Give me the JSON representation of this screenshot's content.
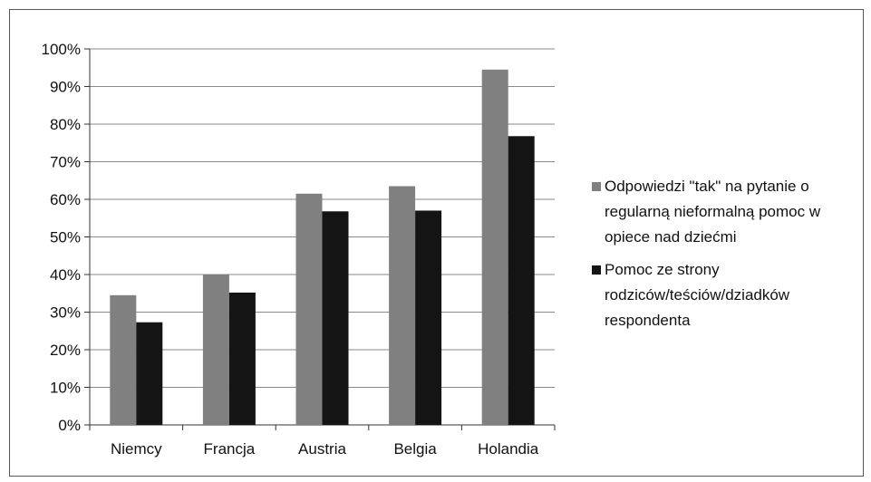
{
  "chart_data": {
    "type": "bar",
    "categories": [
      "Niemcy",
      "Francja",
      "Austria",
      "Belgia",
      "Holandia"
    ],
    "series": [
      {
        "name": "Odpowiedzi \"tak\" na pytanie o regularną nieformalną pomoc w opiece nad dziećmi",
        "values": [
          34.5,
          40,
          61.5,
          63.5,
          94.5
        ],
        "color": "#808080"
      },
      {
        "name": "Pomoc ze strony rodziców/teściów/dziadków respondenta",
        "values": [
          27.3,
          35.2,
          56.8,
          57.0,
          76.8
        ],
        "color": "#141414"
      }
    ],
    "ylim": [
      0,
      100
    ],
    "yticks": [
      "0%",
      "10%",
      "20%",
      "30%",
      "40%",
      "50%",
      "60%",
      "70%",
      "80%",
      "90%",
      "100%"
    ],
    "grid": true,
    "legend_position": "right",
    "title": "",
    "xlabel": "",
    "ylabel": ""
  },
  "legend": {
    "items": [
      {
        "label": "Odpowiedzi \"tak\" na pytanie o regularną nieformalną pomoc w opiece nad dziećmi",
        "color": "#808080"
      },
      {
        "label": "Pomoc ze strony rodziców/teściów/dziadków respondenta",
        "color": "#141414"
      }
    ]
  }
}
